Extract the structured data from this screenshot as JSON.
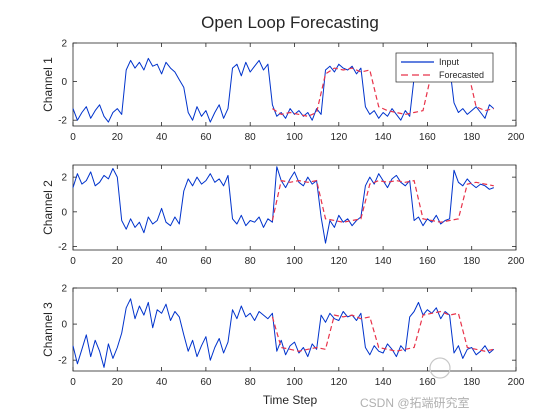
{
  "chart_data": {
    "type": "line",
    "title": "Open Loop Forecasting",
    "xlabel": "Time Step",
    "legend": {
      "entries": [
        "Input",
        "Forecasted"
      ],
      "placement": "top-right",
      "colors": [
        "#0033cc",
        "#e8334a"
      ]
    },
    "colors": {
      "input": "#0033cc",
      "forecast": "#e8334a"
    },
    "panels": [
      {
        "ylabel": "Channel 1",
        "xlim": [
          0,
          200
        ],
        "ylim": [
          -2.3,
          2
        ],
        "xticks": [
          0,
          20,
          40,
          60,
          80,
          100,
          120,
          140,
          160,
          180,
          200
        ],
        "yticks": [
          -2,
          0,
          2
        ],
        "x_input": [
          0,
          2,
          4,
          6,
          8,
          10,
          12,
          14,
          16,
          18,
          20,
          22,
          24,
          26,
          28,
          30,
          32,
          34,
          36,
          38,
          40,
          42,
          44,
          46,
          48,
          50,
          52,
          54,
          56,
          58,
          60,
          62,
          64,
          66,
          68,
          70,
          72,
          74,
          76,
          78,
          80,
          82,
          84,
          86,
          88,
          90,
          92,
          94,
          96,
          98,
          100,
          102,
          104,
          106,
          108,
          110,
          112,
          114,
          116,
          118,
          120,
          122,
          124,
          126,
          128,
          130,
          132,
          134,
          136,
          138,
          140,
          142,
          144,
          146,
          148,
          150,
          152,
          154,
          156,
          158,
          160,
          162,
          164,
          166,
          168,
          170,
          172,
          174,
          176,
          178,
          180,
          182,
          184,
          186,
          188,
          190
        ],
        "y_input": [
          -1.4,
          -2.0,
          -1.6,
          -1.3,
          -1.9,
          -1.5,
          -1.2,
          -1.8,
          -2.1,
          -1.6,
          -1.4,
          -1.7,
          0.6,
          1.1,
          0.7,
          1.0,
          0.6,
          1.2,
          0.8,
          0.9,
          0.4,
          1.0,
          0.7,
          0.5,
          0.1,
          -0.3,
          -1.6,
          -2.0,
          -1.3,
          -1.8,
          -1.5,
          -2.1,
          -1.6,
          -1.2,
          -1.9,
          -1.4,
          0.7,
          0.9,
          0.3,
          1.0,
          0.5,
          0.8,
          1.1,
          0.6,
          0.9,
          -1.2,
          -1.8,
          -1.6,
          -1.9,
          -1.4,
          -1.7,
          -1.5,
          -1.8,
          -1.6,
          -2.0,
          -1.4,
          -1.7,
          0.6,
          0.8,
          0.5,
          0.9,
          0.7,
          0.6,
          0.8,
          0.4,
          0.7,
          -1.3,
          -1.7,
          -1.5,
          -1.9,
          -1.6,
          -1.8,
          -1.4,
          -1.7,
          -2.0,
          -1.5,
          -1.8,
          0.2,
          0.9,
          0.4,
          0.8,
          0.7,
          0.5,
          0.9,
          0.6,
          0.8,
          -1.1,
          -1.6,
          -1.4,
          -1.7,
          -1.5,
          -1.3,
          -1.6,
          -1.9,
          -1.2,
          -1.4
        ],
        "x_forecast": [
          90,
          94,
          98,
          102,
          106,
          110,
          114,
          118,
          122,
          126,
          130,
          134,
          138,
          142,
          146,
          150,
          154,
          158,
          162,
          166,
          170,
          174,
          178,
          182,
          186,
          190
        ],
        "y_forecast": [
          -1.4,
          -1.7,
          -1.6,
          -1.7,
          -1.8,
          -1.6,
          0.4,
          0.7,
          0.6,
          0.7,
          0.5,
          0.6,
          -1.3,
          -1.5,
          -1.6,
          -1.7,
          -1.6,
          -1.5,
          0.5,
          0.7,
          0.6,
          0.6,
          0.7,
          -1.3,
          -1.5,
          -1.4
        ]
      },
      {
        "ylabel": "Channel 2",
        "xlim": [
          0,
          200
        ],
        "ylim": [
          -2.2,
          2.7
        ],
        "xticks": [
          0,
          20,
          40,
          60,
          80,
          100,
          120,
          140,
          160,
          180,
          200
        ],
        "yticks": [
          -2,
          0,
          2
        ],
        "x_input": [
          0,
          2,
          4,
          6,
          8,
          10,
          12,
          14,
          16,
          18,
          20,
          22,
          24,
          26,
          28,
          30,
          32,
          34,
          36,
          38,
          40,
          42,
          44,
          46,
          48,
          50,
          52,
          54,
          56,
          58,
          60,
          62,
          64,
          66,
          68,
          70,
          72,
          74,
          76,
          78,
          80,
          82,
          84,
          86,
          88,
          90,
          92,
          94,
          96,
          98,
          100,
          102,
          104,
          106,
          108,
          110,
          112,
          114,
          116,
          118,
          120,
          122,
          124,
          126,
          128,
          130,
          132,
          134,
          136,
          138,
          140,
          142,
          144,
          146,
          148,
          150,
          152,
          154,
          156,
          158,
          160,
          162,
          164,
          166,
          168,
          170,
          172,
          174,
          176,
          178,
          180,
          182,
          184,
          186,
          188,
          190
        ],
        "y_input": [
          1.4,
          2.2,
          1.6,
          1.8,
          2.3,
          1.5,
          1.7,
          2.1,
          1.9,
          2.5,
          2.0,
          -0.5,
          -1.0,
          -0.4,
          -0.9,
          -0.6,
          -1.2,
          -0.3,
          -0.7,
          -0.5,
          0.2,
          -0.6,
          -0.8,
          -0.3,
          -0.7,
          1.2,
          1.9,
          1.5,
          2.0,
          1.6,
          1.8,
          2.2,
          1.7,
          1.9,
          1.5,
          2.1,
          -0.4,
          -0.7,
          -0.2,
          -0.8,
          -0.5,
          -0.6,
          -0.3,
          -0.9,
          -0.4,
          -0.6,
          2.6,
          1.8,
          1.4,
          1.9,
          2.3,
          1.7,
          1.5,
          2.0,
          1.6,
          1.8,
          -0.3,
          -1.8,
          -0.5,
          -0.9,
          -0.2,
          -0.6,
          -0.4,
          -0.8,
          -0.5,
          -0.3,
          1.5,
          2.0,
          1.6,
          2.2,
          1.8,
          1.4,
          1.9,
          2.1,
          1.7,
          1.5,
          1.8,
          -0.5,
          -0.3,
          -0.8,
          -0.4,
          -0.6,
          -0.2,
          -0.7,
          -0.5,
          -0.4,
          2.4,
          1.7,
          1.5,
          1.9,
          1.6,
          1.4,
          1.6,
          1.5,
          1.3,
          1.4
        ],
        "x_forecast": [
          90,
          94,
          98,
          102,
          106,
          110,
          114,
          118,
          122,
          126,
          130,
          134,
          138,
          142,
          146,
          150,
          154,
          158,
          162,
          166,
          170,
          174,
          178,
          182,
          186,
          190
        ],
        "y_forecast": [
          -0.5,
          1.8,
          1.7,
          1.8,
          1.7,
          1.8,
          -0.4,
          -0.5,
          -0.6,
          -0.5,
          -0.4,
          1.6,
          1.8,
          1.7,
          1.8,
          1.7,
          1.8,
          -0.4,
          -0.5,
          -0.6,
          -0.5,
          -0.4,
          1.6,
          1.7,
          1.6,
          1.5
        ]
      },
      {
        "ylabel": "Channel 3",
        "xlim": [
          0,
          200
        ],
        "ylim": [
          -2.6,
          2
        ],
        "xticks": [
          0,
          20,
          40,
          60,
          80,
          100,
          120,
          140,
          160,
          180,
          200
        ],
        "yticks": [
          -2,
          0,
          2
        ],
        "x_input": [
          0,
          2,
          4,
          6,
          8,
          10,
          12,
          14,
          16,
          18,
          20,
          22,
          24,
          26,
          28,
          30,
          32,
          34,
          36,
          38,
          40,
          42,
          44,
          46,
          48,
          50,
          52,
          54,
          56,
          58,
          60,
          62,
          64,
          66,
          68,
          70,
          72,
          74,
          76,
          78,
          80,
          82,
          84,
          86,
          88,
          90,
          92,
          94,
          96,
          98,
          100,
          102,
          104,
          106,
          108,
          110,
          112,
          114,
          116,
          118,
          120,
          122,
          124,
          126,
          128,
          130,
          132,
          134,
          136,
          138,
          140,
          142,
          144,
          146,
          148,
          150,
          152,
          154,
          156,
          158,
          160,
          162,
          164,
          166,
          168,
          170,
          172,
          174,
          176,
          178,
          180,
          182,
          184,
          186,
          188,
          190
        ],
        "y_input": [
          -1.2,
          -2.2,
          -1.4,
          -0.6,
          -1.8,
          -0.9,
          -1.5,
          -2.4,
          -1.1,
          -1.9,
          -1.3,
          -0.5,
          0.9,
          1.4,
          0.3,
          1.0,
          0.5,
          1.2,
          -0.2,
          0.8,
          0.6,
          1.1,
          0.2,
          0.7,
          0.4,
          -0.6,
          -1.5,
          -0.9,
          -1.8,
          -1.2,
          -0.7,
          -2.0,
          -1.3,
          -0.8,
          -1.6,
          -1.0,
          0.8,
          0.3,
          1.0,
          0.4,
          0.6,
          0.2,
          0.7,
          0.5,
          0.3,
          0.6,
          -1.5,
          -0.9,
          -1.7,
          -1.2,
          -1.0,
          -1.6,
          -1.3,
          -1.8,
          -1.1,
          -1.4,
          0.5,
          0.1,
          0.6,
          0.3,
          0.2,
          0.7,
          0.4,
          0.5,
          0.2,
          0.6,
          -1.3,
          -1.7,
          -1.2,
          -1.5,
          -1.6,
          -1.1,
          -1.4,
          -1.8,
          -1.2,
          -1.5,
          0.4,
          0.7,
          1.2,
          0.5,
          0.8,
          0.6,
          0.9,
          0.3,
          0.7,
          0.5,
          -1.6,
          -1.2,
          -1.9,
          -1.4,
          -1.3,
          -1.7,
          -1.5,
          -1.2,
          -1.6,
          -1.4
        ],
        "x_forecast": [
          90,
          94,
          98,
          102,
          106,
          110,
          114,
          118,
          122,
          126,
          130,
          134,
          138,
          142,
          146,
          150,
          154,
          158,
          162,
          166,
          170,
          174,
          178,
          182,
          186,
          190
        ],
        "y_forecast": [
          0.4,
          -1.3,
          -1.4,
          -1.5,
          -1.4,
          -1.3,
          -1.4,
          0.5,
          0.4,
          0.5,
          0.3,
          0.4,
          -1.3,
          -1.4,
          -1.5,
          -1.4,
          -1.3,
          0.5,
          0.6,
          0.7,
          0.5,
          0.6,
          -1.3,
          -1.4,
          -1.5,
          -1.4
        ]
      }
    ]
  },
  "watermark": {
    "text": "CSDN @拓端研究室",
    "logo_text": "拓端数据部落"
  }
}
